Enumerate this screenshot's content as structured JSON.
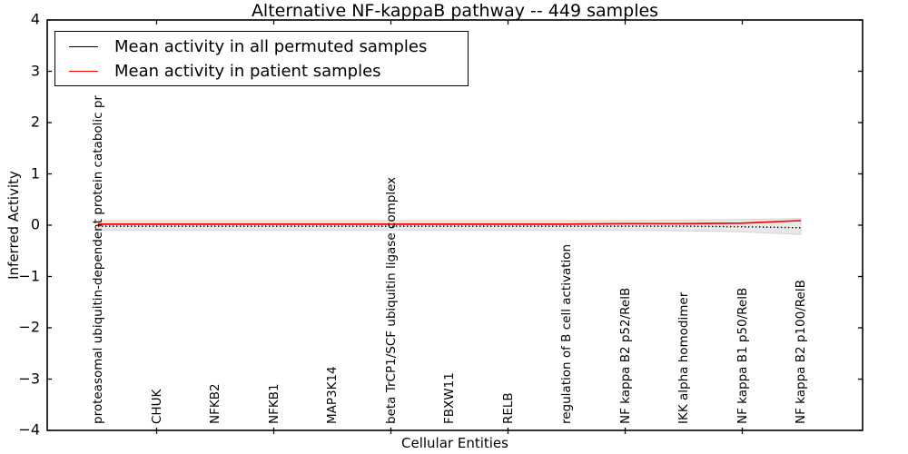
{
  "title": "Alternative NF-kappaB pathway -- 449 samples",
  "legend": {
    "items": [
      {
        "label": "Mean activity in all permuted samples",
        "color": "#000000"
      },
      {
        "label": "Mean activity in patient samples",
        "color": "#ff0000"
      }
    ]
  },
  "chart_data": {
    "type": "line",
    "title": "Alternative NF-kappaB pathway -- 449 samples",
    "xlabel": "Cellular Entities",
    "ylabel": "Inferred Activity",
    "ylim": [
      -4,
      4
    ],
    "yticks": [
      4,
      3,
      2,
      1,
      0,
      -1,
      -2,
      -3,
      -4
    ],
    "ytick_labels": [
      "4",
      "3",
      "2",
      "1",
      "0",
      "−1",
      "−2",
      "−3",
      "−4"
    ],
    "grid": false,
    "legend_position": "upper left",
    "categories": [
      "proteasomal ubiquitin-dependent protein catabolic pr",
      "CHUK",
      "NFKB2",
      "NFKB1",
      "MAP3K14",
      "beta TrCP1/SCF ubiquitin ligase complex",
      "FBXW11",
      "RELB",
      "regulation of B cell activation",
      "NF kappa B2 p52/RelB",
      "IKK alpha homodimer",
      "NF kappa B1 p50/RelB",
      "NF kappa B2 p100/RelB"
    ],
    "series": [
      {
        "name": "Mean activity in all permuted samples",
        "color": "#000000",
        "style": "dotted",
        "values": [
          -0.02,
          -0.02,
          -0.02,
          -0.02,
          -0.02,
          -0.02,
          -0.02,
          -0.02,
          -0.02,
          -0.02,
          -0.02,
          -0.03,
          -0.05
        ]
      },
      {
        "name": "Mean activity in patient samples",
        "color": "#ff0000",
        "style": "solid",
        "values": [
          0.02,
          0.02,
          0.02,
          0.02,
          0.02,
          0.02,
          0.02,
          0.02,
          0.02,
          0.03,
          0.03,
          0.04,
          0.09
        ]
      }
    ],
    "band": {
      "name": "permuted-samples-spread",
      "fill": "#e9e9e9",
      "edge": "#d5d5d5",
      "upper": [
        0.09,
        0.09,
        0.09,
        0.09,
        0.09,
        0.09,
        0.09,
        0.09,
        0.09,
        0.09,
        0.1,
        0.11,
        0.13
      ],
      "lower": [
        -0.1,
        -0.1,
        -0.1,
        -0.1,
        -0.1,
        -0.1,
        -0.1,
        -0.1,
        -0.1,
        -0.1,
        -0.11,
        -0.13,
        -0.18
      ]
    }
  }
}
